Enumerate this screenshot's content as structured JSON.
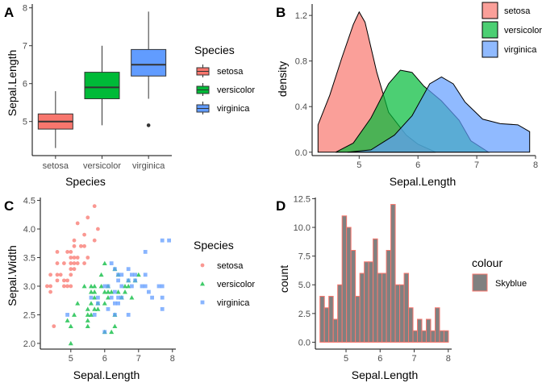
{
  "colors": {
    "setosa": "#F8766D",
    "versicolor": "#00BA38",
    "virginica": "#619CFF",
    "hist_fill": "#808080",
    "hist_outline": "#F8766D"
  },
  "chart_data": [
    {
      "tag": "A",
      "type": "box",
      "categories": [
        "setosa",
        "versicolor",
        "virginica"
      ],
      "boxes": [
        {
          "name": "setosa",
          "min": 4.3,
          "q1": 4.8,
          "median": 5.0,
          "q3": 5.2,
          "max": 5.8,
          "outliers": []
        },
        {
          "name": "versicolor",
          "min": 4.9,
          "q1": 5.6,
          "median": 5.9,
          "q3": 6.3,
          "max": 7.0,
          "outliers": []
        },
        {
          "name": "virginica",
          "min": 5.6,
          "q1": 6.2,
          "median": 6.5,
          "q3": 6.9,
          "max": 7.9,
          "outliers": [
            4.9
          ]
        }
      ],
      "xlabel": "Species",
      "ylabel": "Sepal.Length",
      "ylim": [
        4.1,
        8.1
      ],
      "yticks": [
        "5",
        "6",
        "7",
        "8"
      ],
      "legend_title": "Species",
      "legend": [
        "setosa",
        "versicolor",
        "virginica"
      ],
      "legend_position": "right"
    },
    {
      "tag": "B",
      "type": "area",
      "xlabel": "Sepal.Length",
      "ylabel": "density",
      "xlim": [
        4.2,
        8.0
      ],
      "ylim": [
        -0.03,
        1.3
      ],
      "xticks": [
        "5",
        "6",
        "7",
        "8"
      ],
      "yticks": [
        "0.0",
        "0.4",
        "0.8",
        "1.2"
      ],
      "series": [
        {
          "name": "setosa",
          "x": [
            4.3,
            4.5,
            4.7,
            4.9,
            5.0,
            5.1,
            5.3,
            5.5,
            5.8,
            6.0,
            6.3
          ],
          "y": [
            0.24,
            0.5,
            0.82,
            1.12,
            1.23,
            1.14,
            0.7,
            0.35,
            0.15,
            0.07,
            0.0
          ]
        },
        {
          "name": "versicolor",
          "x": [
            4.6,
            4.9,
            5.2,
            5.5,
            5.7,
            5.9,
            6.1,
            6.4,
            6.7,
            6.9,
            7.2
          ],
          "y": [
            0.0,
            0.08,
            0.3,
            0.6,
            0.72,
            0.7,
            0.58,
            0.45,
            0.28,
            0.1,
            0.0
          ]
        },
        {
          "name": "virginica",
          "x": [
            4.8,
            5.2,
            5.6,
            5.9,
            6.2,
            6.4,
            6.6,
            6.8,
            7.1,
            7.4,
            7.7,
            7.9
          ],
          "y": [
            0.0,
            0.02,
            0.15,
            0.32,
            0.6,
            0.66,
            0.6,
            0.44,
            0.29,
            0.25,
            0.24,
            0.18
          ]
        }
      ],
      "legend": [
        "setosa",
        "versicolor",
        "virginica"
      ],
      "legend_position": "top-right"
    },
    {
      "tag": "C",
      "type": "scatter",
      "xlabel": "Sepal.Length",
      "ylabel": "Sepal.Width",
      "xlim": [
        4.1,
        8.1
      ],
      "ylim": [
        1.9,
        4.55
      ],
      "xticks": [
        "5",
        "6",
        "7",
        "8"
      ],
      "yticks": [
        "2.0",
        "2.5",
        "3.0",
        "3.5",
        "4.0",
        "4.5"
      ],
      "series": [
        {
          "name": "setosa",
          "marker": "circle",
          "points": [
            [
              4.3,
              3.0
            ],
            [
              4.4,
              2.9
            ],
            [
              4.4,
              3.0
            ],
            [
              4.4,
              3.2
            ],
            [
              4.5,
              2.3
            ],
            [
              4.6,
              3.1
            ],
            [
              4.6,
              3.4
            ],
            [
              4.6,
              3.6
            ],
            [
              4.6,
              3.2
            ],
            [
              4.7,
              3.2
            ],
            [
              4.8,
              3.4
            ],
            [
              4.8,
              3.0
            ],
            [
              4.8,
              3.1
            ],
            [
              4.9,
              3.0
            ],
            [
              4.9,
              3.1
            ],
            [
              4.9,
              3.6
            ],
            [
              5.0,
              3.6
            ],
            [
              5.0,
              3.4
            ],
            [
              5.0,
              3.0
            ],
            [
              5.0,
              3.3
            ],
            [
              5.0,
              3.2
            ],
            [
              5.0,
              3.5
            ],
            [
              5.1,
              3.5
            ],
            [
              5.1,
              3.8
            ],
            [
              5.1,
              3.7
            ],
            [
              5.1,
              3.3
            ],
            [
              5.1,
              3.4
            ],
            [
              5.2,
              3.5
            ],
            [
              5.2,
              3.4
            ],
            [
              5.2,
              4.1
            ],
            [
              5.3,
              3.7
            ],
            [
              5.4,
              3.9
            ],
            [
              5.4,
              3.7
            ],
            [
              5.4,
              3.4
            ],
            [
              5.5,
              4.2
            ],
            [
              5.5,
              3.5
            ],
            [
              5.7,
              4.4
            ],
            [
              5.7,
              3.8
            ],
            [
              5.8,
              4.0
            ]
          ]
        },
        {
          "name": "versicolor",
          "marker": "triangle",
          "points": [
            [
              4.9,
              2.4
            ],
            [
              5.0,
              2.0
            ],
            [
              5.0,
              2.3
            ],
            [
              5.1,
              2.5
            ],
            [
              5.2,
              2.7
            ],
            [
              5.4,
              3.0
            ],
            [
              5.5,
              2.3
            ],
            [
              5.5,
              2.4
            ],
            [
              5.5,
              2.5
            ],
            [
              5.5,
              2.6
            ],
            [
              5.6,
              2.9
            ],
            [
              5.6,
              3.0
            ],
            [
              5.6,
              2.5
            ],
            [
              5.6,
              2.7
            ],
            [
              5.7,
              2.8
            ],
            [
              5.7,
              2.6
            ],
            [
              5.7,
              2.9
            ],
            [
              5.7,
              3.0
            ],
            [
              5.8,
              2.7
            ],
            [
              5.8,
              2.6
            ],
            [
              5.9,
              3.0
            ],
            [
              5.9,
              3.2
            ],
            [
              6.0,
              2.2
            ],
            [
              6.0,
              2.9
            ],
            [
              6.0,
              2.7
            ],
            [
              6.0,
              3.4
            ],
            [
              6.1,
              2.8
            ],
            [
              6.1,
              3.0
            ],
            [
              6.1,
              2.9
            ],
            [
              6.2,
              2.2
            ],
            [
              6.2,
              2.9
            ],
            [
              6.3,
              3.3
            ],
            [
              6.3,
              2.5
            ],
            [
              6.3,
              2.3
            ],
            [
              6.4,
              3.2
            ],
            [
              6.4,
              2.9
            ],
            [
              6.5,
              2.8
            ],
            [
              6.6,
              2.9
            ],
            [
              6.6,
              3.0
            ],
            [
              6.7,
              3.1
            ],
            [
              6.7,
              3.0
            ],
            [
              6.8,
              2.8
            ],
            [
              6.9,
              3.1
            ],
            [
              7.0,
              3.2
            ]
          ]
        },
        {
          "name": "virginica",
          "marker": "square",
          "points": [
            [
              4.9,
              2.5
            ],
            [
              5.6,
              2.8
            ],
            [
              5.7,
              2.5
            ],
            [
              5.8,
              2.7
            ],
            [
              5.8,
              2.8
            ],
            [
              6.0,
              2.2
            ],
            [
              6.0,
              3.0
            ],
            [
              6.1,
              3.0
            ],
            [
              6.1,
              2.6
            ],
            [
              6.2,
              2.8
            ],
            [
              6.2,
              3.4
            ],
            [
              6.3,
              3.3
            ],
            [
              6.3,
              2.9
            ],
            [
              6.3,
              2.7
            ],
            [
              6.3,
              2.5
            ],
            [
              6.4,
              2.7
            ],
            [
              6.4,
              3.2
            ],
            [
              6.4,
              2.8
            ],
            [
              6.4,
              3.1
            ],
            [
              6.5,
              3.0
            ],
            [
              6.5,
              3.2
            ],
            [
              6.5,
              2.8
            ],
            [
              6.7,
              2.5
            ],
            [
              6.7,
              3.3
            ],
            [
              6.7,
              3.1
            ],
            [
              6.8,
              3.0
            ],
            [
              6.8,
              3.2
            ],
            [
              6.9,
              3.1
            ],
            [
              6.9,
              3.2
            ],
            [
              7.1,
              3.0
            ],
            [
              7.2,
              3.6
            ],
            [
              7.2,
              3.2
            ],
            [
              7.2,
              3.0
            ],
            [
              7.3,
              2.9
            ],
            [
              7.4,
              2.8
            ],
            [
              7.6,
              3.0
            ],
            [
              7.7,
              3.8
            ],
            [
              7.7,
              2.6
            ],
            [
              7.7,
              2.8
            ],
            [
              7.7,
              3.0
            ],
            [
              7.9,
              3.8
            ]
          ]
        }
      ],
      "legend_title": "Species",
      "legend": [
        "setosa",
        "versicolor",
        "virginica"
      ],
      "legend_position": "right"
    },
    {
      "tag": "D",
      "type": "bar",
      "xlabel": "Sepal.Length",
      "ylabel": "count",
      "bin_width": 0.13,
      "bins": [
        {
          "x": 4.3,
          "count": 4
        },
        {
          "x": 4.43,
          "count": 3
        },
        {
          "x": 4.56,
          "count": 4
        },
        {
          "x": 4.69,
          "count": 2
        },
        {
          "x": 4.82,
          "count": 5
        },
        {
          "x": 4.95,
          "count": 11
        },
        {
          "x": 5.08,
          "count": 10
        },
        {
          "x": 5.21,
          "count": 8
        },
        {
          "x": 5.34,
          "count": 4
        },
        {
          "x": 5.47,
          "count": 6
        },
        {
          "x": 5.6,
          "count": 7
        },
        {
          "x": 5.73,
          "count": 7
        },
        {
          "x": 5.86,
          "count": 9
        },
        {
          "x": 5.99,
          "count": 6
        },
        {
          "x": 6.12,
          "count": 6
        },
        {
          "x": 6.25,
          "count": 8
        },
        {
          "x": 6.38,
          "count": 12
        },
        {
          "x": 6.51,
          "count": 5
        },
        {
          "x": 6.64,
          "count": 5
        },
        {
          "x": 6.77,
          "count": 6
        },
        {
          "x": 6.9,
          "count": 3
        },
        {
          "x": 7.03,
          "count": 1
        },
        {
          "x": 7.16,
          "count": 2
        },
        {
          "x": 7.29,
          "count": 1
        },
        {
          "x": 7.42,
          "count": 2
        },
        {
          "x": 7.55,
          "count": 1
        },
        {
          "x": 7.68,
          "count": 3
        },
        {
          "x": 7.81,
          "count": 1
        },
        {
          "x": 7.94,
          "count": 1
        }
      ],
      "xlim": [
        4.1,
        8.1
      ],
      "ylim": [
        -0.6,
        12.6
      ],
      "xticks": [
        "5",
        "6",
        "7",
        "8"
      ],
      "yticks": [
        "0.0",
        "2.5",
        "5.0",
        "7.5",
        "10.0",
        "12.5"
      ],
      "legend_title": "colour",
      "legend": [
        "Skyblue"
      ],
      "legend_position": "right"
    }
  ]
}
